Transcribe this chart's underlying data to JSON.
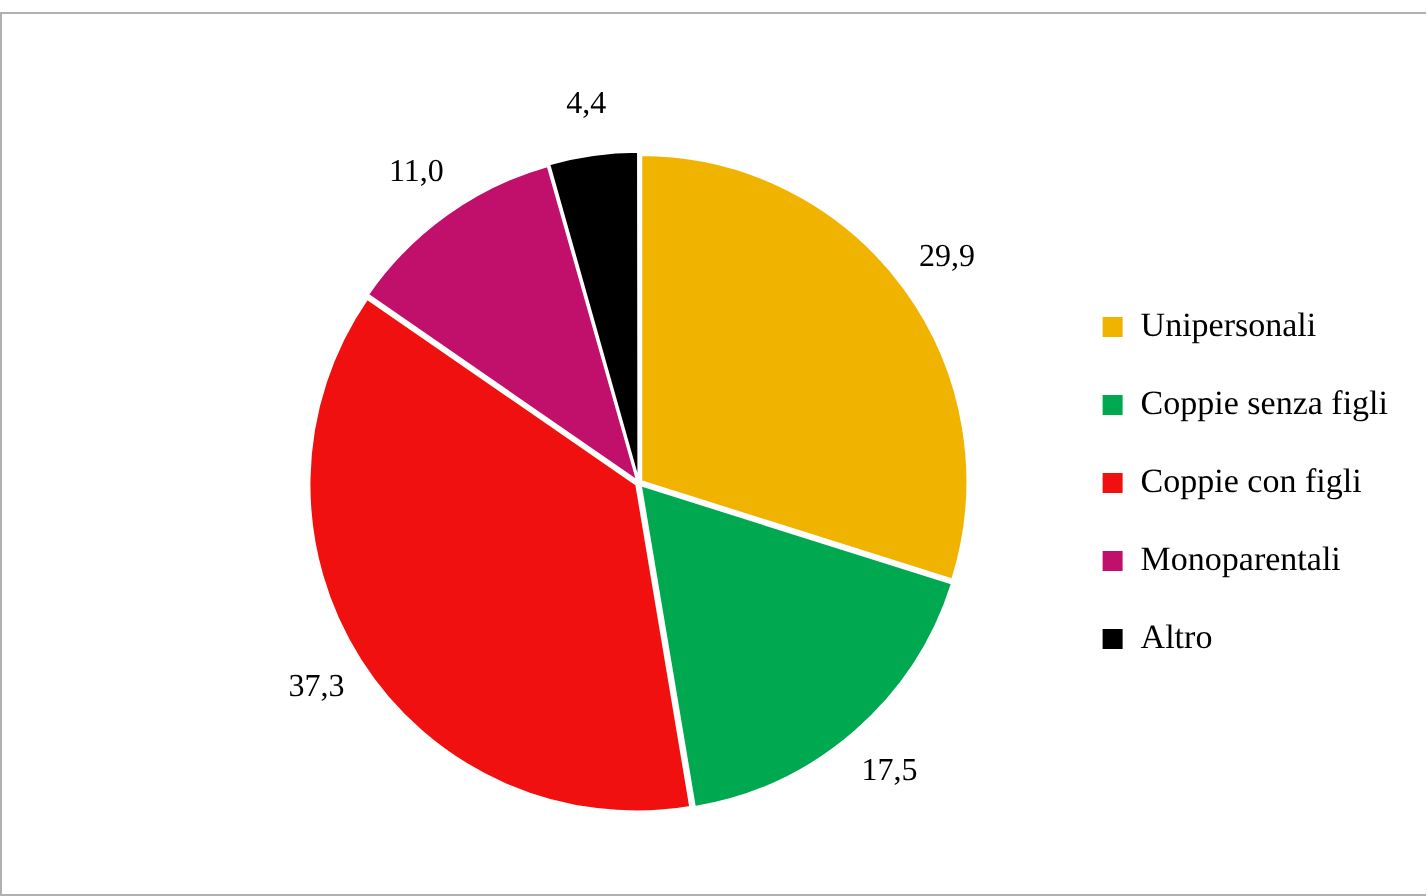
{
  "chart_data": {
    "type": "pie",
    "categories": [
      "Unipersonali",
      "Coppie senza figli",
      "Coppie con figli",
      "Monoparentali",
      "Altro"
    ],
    "values": [
      29.9,
      17.5,
      37.3,
      11.0,
      4.4
    ],
    "value_labels": [
      "29,9",
      "17,5",
      "37,3",
      "11,0",
      "4,4"
    ],
    "colors": [
      "#f0b400",
      "#00a84f",
      "#f01010",
      "#c0106c",
      "#000000"
    ],
    "legend": "right"
  }
}
